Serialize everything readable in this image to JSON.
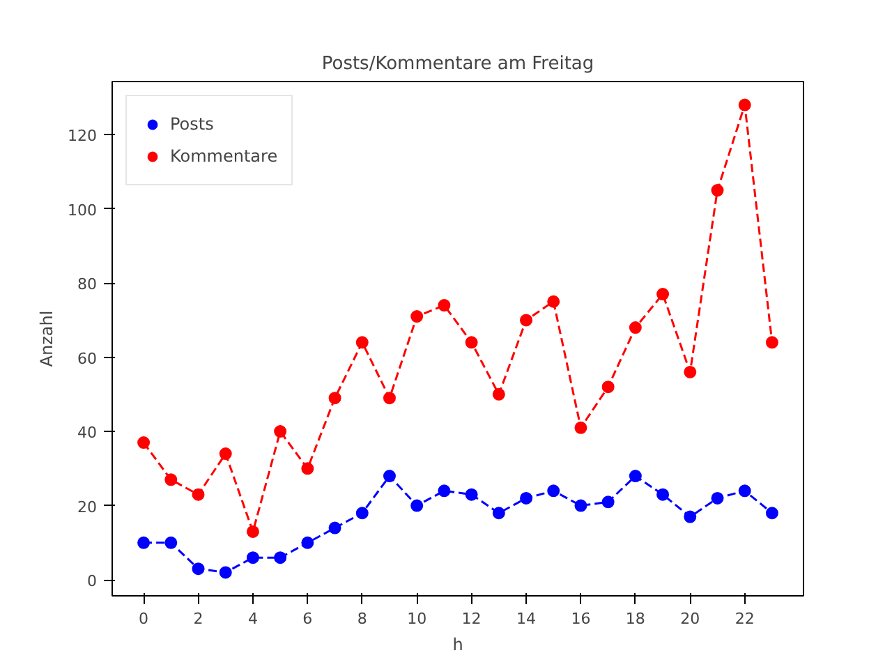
{
  "chart_data": {
    "type": "line",
    "title": "Posts/Kommentare am Freitag",
    "xlabel": "h",
    "ylabel": "Anzahl",
    "x": [
      0,
      1,
      2,
      3,
      4,
      5,
      6,
      7,
      8,
      9,
      10,
      11,
      12,
      13,
      14,
      15,
      16,
      17,
      18,
      19,
      20,
      21,
      22,
      23
    ],
    "series": [
      {
        "name": "Posts",
        "color": "#0000ff",
        "values": [
          10,
          10,
          3,
          2,
          6,
          6,
          10,
          14,
          18,
          28,
          20,
          24,
          23,
          18,
          22,
          24,
          20,
          21,
          28,
          23,
          17,
          22,
          24,
          18
        ]
      },
      {
        "name": "Kommentare",
        "color": "#ff0000",
        "values": [
          37,
          27,
          23,
          34,
          13,
          40,
          30,
          49,
          64,
          49,
          71,
          74,
          64,
          50,
          70,
          75,
          41,
          52,
          68,
          77,
          56,
          105,
          128,
          64
        ]
      }
    ],
    "xlim": [
      -1.15,
      24.15
    ],
    "ylim": [
      -4.3,
      134.3
    ],
    "xticks": [
      0,
      2,
      4,
      6,
      8,
      10,
      12,
      14,
      16,
      18,
      20,
      22
    ],
    "yticks": [
      0,
      20,
      40,
      60,
      80,
      100,
      120
    ],
    "grid": false,
    "legend": "top left",
    "marker": "circle",
    "line_style": "dashed"
  }
}
